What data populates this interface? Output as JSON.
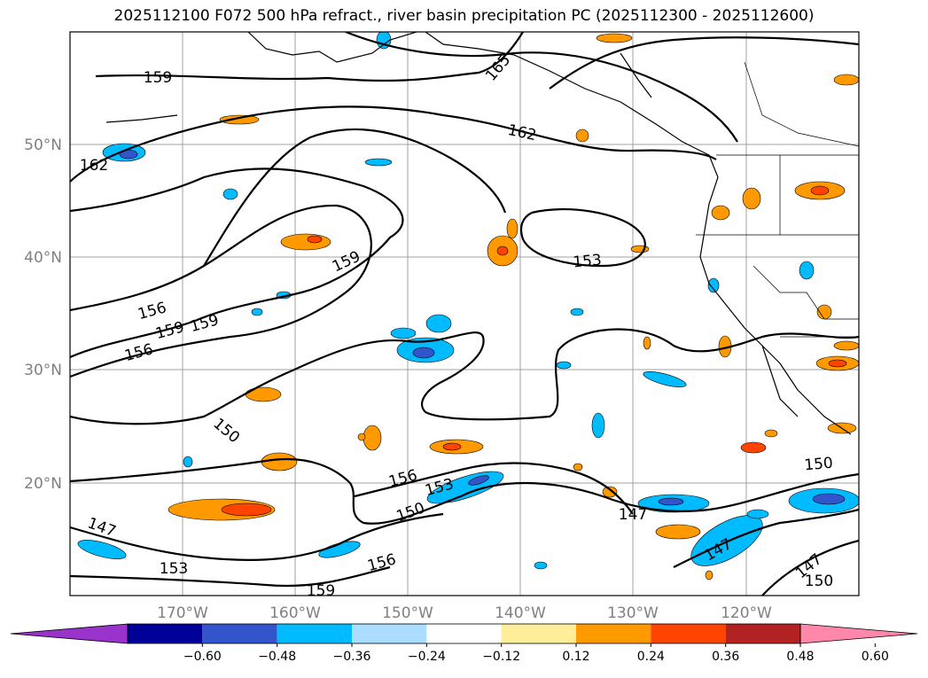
{
  "title": "2025112100 F072 500 hPa refract., river basin precipitation PC (2025112300 - 2025112600)",
  "map": {
    "lat_labels": [
      "50°N",
      "40°N",
      "30°N",
      "20°N"
    ],
    "lon_labels": [
      "170°W",
      "160°W",
      "150°W",
      "140°W",
      "130°W",
      "120°W"
    ],
    "contour_labels": [
      "159",
      "162",
      "165",
      "162",
      "159",
      "153",
      "156",
      "159",
      "159",
      "156",
      "150",
      "156",
      "153",
      "150",
      "147",
      "153",
      "159",
      "156",
      "147",
      "147",
      "150",
      "147",
      "150"
    ],
    "colors": {
      "contour": "#000000",
      "grid": "#a0a0a0",
      "coast": "#000000"
    }
  },
  "colorbar": {
    "colors": [
      "#9933cc",
      "#000099",
      "#3355cc",
      "#00bbff",
      "#aaddff",
      "#ffffff",
      "#ffee99",
      "#ff9900",
      "#ff4400",
      "#b22222",
      "#ff88aa"
    ],
    "tick_labels": [
      "−0.60",
      "−0.48",
      "−0.36",
      "−0.24",
      "−0.12",
      "0.12",
      "0.24",
      "0.36",
      "0.48",
      "0.60"
    ]
  }
}
